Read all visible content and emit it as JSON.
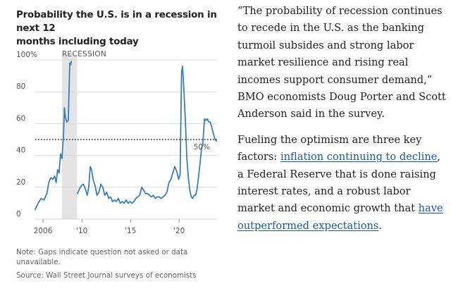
{
  "chart_data": {
    "type": "line",
    "title": "Probability the U.S. is in a recession in next 12 months including today",
    "title_lines": [
      "Probability the U.S. is in a recession in next 12",
      "months including today"
    ],
    "y_tick_labels": [
      "100%",
      "80",
      "60",
      "40",
      "20",
      "0"
    ],
    "y_ticks": [
      100,
      80,
      60,
      40,
      20,
      0
    ],
    "x_tick_labels": [
      "2006",
      "'10",
      "'15",
      "'20"
    ],
    "x_ticks": [
      2006,
      2010,
      2015,
      2020
    ],
    "xlim": [
      2005.2,
      2023.9
    ],
    "ylim": [
      0,
      100
    ],
    "recession_band": {
      "label": "RECESSION",
      "start": 2007.95,
      "end": 2009.5
    },
    "reference_line": {
      "value": 50,
      "label": "50%"
    },
    "series": [
      {
        "name": "Probability of recession",
        "segments": [
          [
            [
              2005.2,
              6
            ],
            [
              2005.5,
              10
            ],
            [
              2005.8,
              13
            ],
            [
              2006.1,
              12
            ],
            [
              2006.4,
              16
            ],
            [
              2006.6,
              23
            ],
            [
              2006.8,
              26
            ],
            [
              2007.0,
              25
            ],
            [
              2007.2,
              27
            ],
            [
              2007.35,
              23
            ],
            [
              2007.5,
              31
            ],
            [
              2007.65,
              29
            ],
            [
              2007.8,
              41
            ],
            [
              2007.95,
              38
            ],
            [
              2008.1,
              52
            ],
            [
              2008.2,
              70
            ],
            [
              2008.3,
              64
            ],
            [
              2008.45,
              61
            ],
            [
              2008.6,
              62
            ],
            [
              2008.75,
              98
            ],
            [
              2008.85,
              97
            ],
            [
              2008.92,
              99
            ]
          ],
          [
            [
              2009.55,
              16
            ],
            [
              2009.75,
              19
            ],
            [
              2009.95,
              21
            ],
            [
              2010.15,
              22
            ],
            [
              2010.35,
              19
            ],
            [
              2010.55,
              15
            ],
            [
              2010.7,
              20
            ],
            [
              2010.85,
              33
            ],
            [
              2011.0,
              31
            ],
            [
              2011.15,
              25
            ],
            [
              2011.35,
              21
            ],
            [
              2011.55,
              15
            ],
            [
              2011.75,
              17
            ],
            [
              2011.95,
              22
            ],
            [
              2012.15,
              20
            ],
            [
              2012.35,
              15
            ],
            [
              2012.55,
              17
            ],
            [
              2012.75,
              13
            ],
            [
              2012.95,
              14
            ],
            [
              2013.15,
              11
            ],
            [
              2013.35,
              12
            ],
            [
              2013.55,
              11
            ],
            [
              2013.75,
              13
            ],
            [
              2013.95,
              10
            ],
            [
              2014.15,
              11
            ],
            [
              2014.35,
              10
            ],
            [
              2014.55,
              12
            ],
            [
              2014.75,
              10
            ],
            [
              2014.95,
              11
            ],
            [
              2015.15,
              10
            ],
            [
              2015.35,
              11
            ],
            [
              2015.55,
              13
            ],
            [
              2015.75,
              14
            ],
            [
              2015.95,
              15
            ],
            [
              2016.15,
              20
            ],
            [
              2016.35,
              18
            ],
            [
              2016.55,
              16
            ],
            [
              2016.75,
              16
            ],
            [
              2016.95,
              15
            ],
            [
              2017.15,
              14
            ],
            [
              2017.35,
              15
            ],
            [
              2017.55,
              13
            ],
            [
              2017.75,
              14
            ],
            [
              2017.95,
              14
            ],
            [
              2018.15,
              13
            ],
            [
              2018.35,
              14
            ],
            [
              2018.55,
              15
            ],
            [
              2018.75,
              17
            ],
            [
              2018.95,
              23
            ],
            [
              2019.15,
              25
            ],
            [
              2019.35,
              29
            ],
            [
              2019.55,
              33
            ],
            [
              2019.75,
              30
            ],
            [
              2019.95,
              25
            ],
            [
              2020.1,
              28
            ],
            [
              2020.25,
              92
            ],
            [
              2020.35,
              96
            ],
            [
              2020.5,
              80
            ],
            [
              2020.65,
              60
            ],
            [
              2020.8,
              38
            ],
            [
              2020.95,
              26
            ],
            [
              2021.1,
              18
            ],
            [
              2021.25,
              14
            ],
            [
              2021.4,
              13
            ],
            [
              2021.55,
              15
            ],
            [
              2021.7,
              15
            ],
            [
              2021.85,
              19
            ],
            [
              2022.0,
              27
            ],
            [
              2022.15,
              35
            ],
            [
              2022.3,
              44
            ],
            [
              2022.45,
              48
            ],
            [
              2022.6,
              63
            ],
            [
              2022.75,
              62
            ],
            [
              2022.9,
              63
            ],
            [
              2023.05,
              61
            ],
            [
              2023.2,
              61
            ],
            [
              2023.35,
              58
            ],
            [
              2023.5,
              54
            ],
            [
              2023.7,
              50
            ],
            [
              2023.85,
              49
            ]
          ]
        ]
      }
    ],
    "note": "Note: Gaps indicate question not asked or data unavailable.",
    "source": "Source: Wall Street Journal surveys of economists"
  },
  "article": {
    "paragraphs": [
      [
        {
          "text": "“The probability of recession continues to recede in the U.S. as the banking turmoil subsides and strong labor market resilience and rising real incomes support consumer demand,” BMO economists Doug Porter and Scott Anderson said in the survey."
        }
      ],
      [
        {
          "text": "Fueling the optimism are three key factors: "
        },
        {
          "text": "inflation continuing to decline",
          "link": true
        },
        {
          "text": ", a Federal Reserve that is done raising interest rates, and a robust labor market and economic growth that "
        },
        {
          "text": "have outperformed expectations",
          "link": true
        },
        {
          "text": "."
        }
      ]
    ]
  },
  "colors": {
    "line": "#3a7fb8",
    "band": "#e4e4e4",
    "grid": "#d4d4d4",
    "axis_text": "#555555",
    "link": "#1a5aa6",
    "reference": "#222222"
  }
}
